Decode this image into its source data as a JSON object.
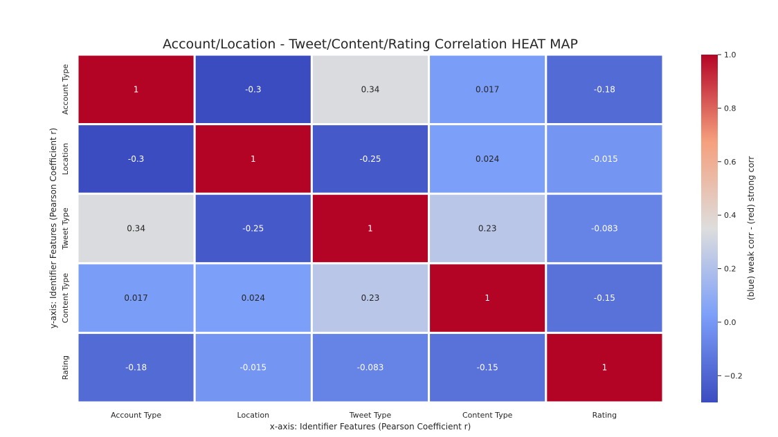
{
  "chart_data": {
    "type": "heatmap",
    "title": "Account/Location - Tweet/Content/Rating Correlation HEAT MAP",
    "xlabel": "x-axis: Identifier Features (Pearson Coefficient r)",
    "ylabel": "y-axis: Identifier Features (Pearson Coefficient r)",
    "x_categories": [
      "Account Type",
      "Location",
      "Tweet Type",
      "Content Type",
      "Rating"
    ],
    "y_categories": [
      "Account Type",
      "Location",
      "Tweet Type",
      "Content Type",
      "Rating"
    ],
    "values": [
      [
        1,
        -0.3,
        0.34,
        0.017,
        -0.18
      ],
      [
        -0.3,
        1,
        -0.25,
        0.024,
        -0.015
      ],
      [
        0.34,
        -0.25,
        1,
        0.23,
        -0.083
      ],
      [
        0.017,
        0.024,
        0.23,
        1,
        -0.15
      ],
      [
        -0.18,
        -0.015,
        -0.083,
        -0.15,
        1
      ]
    ],
    "labels": [
      [
        "1",
        "-0.3",
        "0.34",
        "0.017",
        "-0.18"
      ],
      [
        "-0.3",
        "1",
        "-0.25",
        "0.024",
        "-0.015"
      ],
      [
        "0.34",
        "-0.25",
        "1",
        "0.23",
        "-0.083"
      ],
      [
        "0.017",
        "0.024",
        "0.23",
        "1",
        "-0.15"
      ],
      [
        "-0.18",
        "-0.015",
        "-0.083",
        "-0.15",
        "1"
      ]
    ],
    "colormap": "coolwarm",
    "vmin": -0.3,
    "vmax": 1.0,
    "colorbar": {
      "label": "(blue) weak corr - (red) strong corr",
      "ticks": [
        -0.2,
        0.0,
        0.2,
        0.4,
        0.6,
        0.8,
        1.0
      ],
      "tick_labels": [
        "−0.2",
        "0.0",
        "0.2",
        "0.4",
        "0.6",
        "0.8",
        "1.0"
      ],
      "placement": "right"
    },
    "grid": false
  }
}
